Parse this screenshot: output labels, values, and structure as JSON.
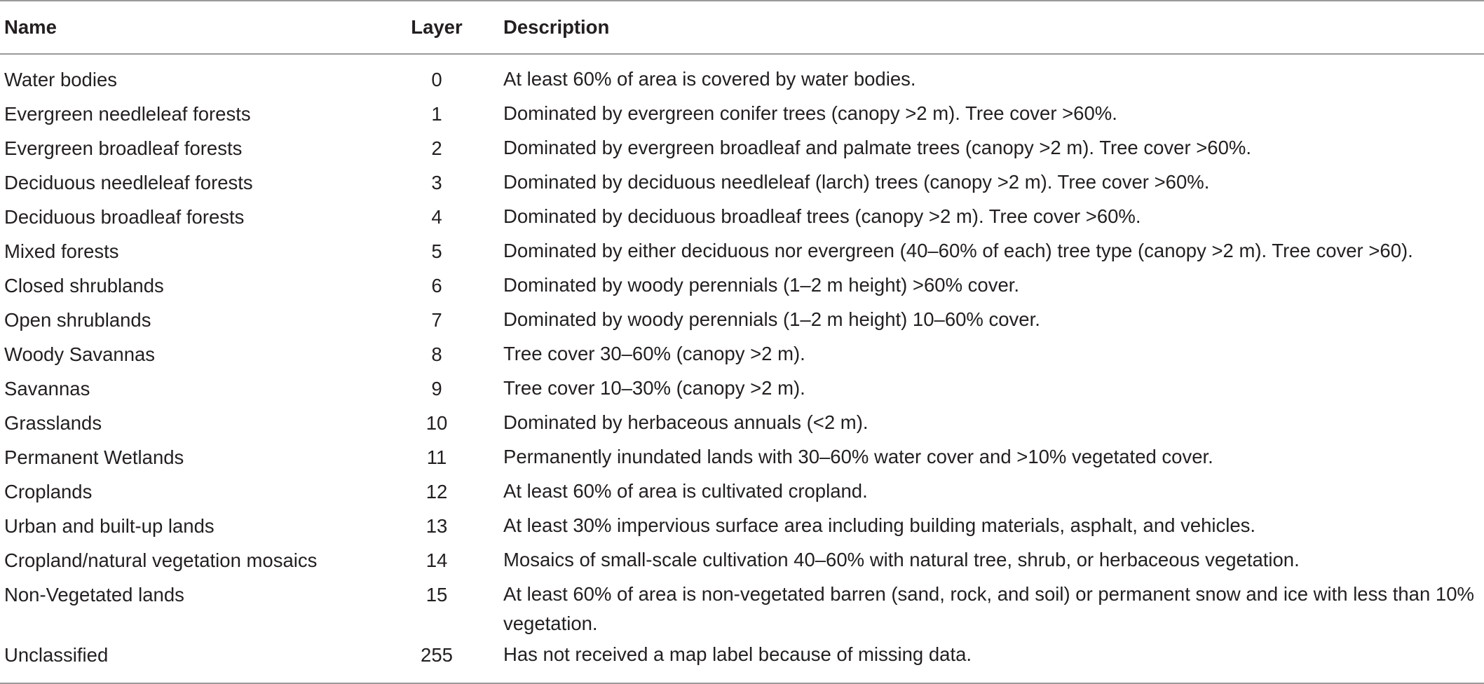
{
  "table": {
    "headers": {
      "name": "Name",
      "layer": "Layer",
      "description": "Description"
    },
    "rows": [
      {
        "name": "Water bodies",
        "layer": "0",
        "description": "At least 60% of area is covered by water bodies."
      },
      {
        "name": "Evergreen needleleaf forests",
        "layer": "1",
        "description": "Dominated by evergreen conifer trees (canopy >2 m). Tree cover >60%."
      },
      {
        "name": "Evergreen broadleaf forests",
        "layer": "2",
        "description": "Dominated by evergreen broadleaf and palmate trees (canopy >2 m). Tree cover >60%."
      },
      {
        "name": "Deciduous needleleaf forests",
        "layer": "3",
        "description": "Dominated by deciduous needleleaf (larch) trees (canopy >2 m). Tree cover >60%."
      },
      {
        "name": "Deciduous broadleaf forests",
        "layer": "4",
        "description": "Dominated by deciduous broadleaf trees (canopy >2 m). Tree cover >60%."
      },
      {
        "name": "Mixed forests",
        "layer": "5",
        "description": "Dominated by either deciduous nor evergreen (40–60% of each) tree type (canopy >2 m). Tree cover >60)."
      },
      {
        "name": "Closed shrublands",
        "layer": "6",
        "description": "Dominated by woody perennials (1–2 m height) >60% cover."
      },
      {
        "name": "Open shrublands",
        "layer": "7",
        "description": "Dominated by woody perennials (1–2 m height) 10–60% cover."
      },
      {
        "name": "Woody Savannas",
        "layer": "8",
        "description": "Tree cover 30–60% (canopy >2 m)."
      },
      {
        "name": "Savannas",
        "layer": "9",
        "description": "Tree cover 10–30% (canopy >2 m)."
      },
      {
        "name": "Grasslands",
        "layer": "10",
        "description": "Dominated by herbaceous annuals (<2 m)."
      },
      {
        "name": "Permanent Wetlands",
        "layer": "11",
        "description": "Permanently inundated lands with 30–60% water cover and >10% vegetated cover."
      },
      {
        "name": "Croplands",
        "layer": "12",
        "description": "At least 60% of area is cultivated cropland."
      },
      {
        "name": "Urban and built-up lands",
        "layer": "13",
        "description": "At least 30% impervious surface area including building materials, asphalt, and vehicles."
      },
      {
        "name": "Cropland/natural vegetation mosaics",
        "layer": "14",
        "description": "Mosaics of small-scale cultivation 40–60% with natural tree, shrub, or herbaceous vegetation."
      },
      {
        "name": "Non-Vegetated lands",
        "layer": "15",
        "description": "At least 60% of area is non-vegetated barren (sand, rock, and soil) or permanent snow and ice with less than 10% vegetation."
      },
      {
        "name": "Unclassified",
        "layer": "255",
        "description": "Has not received a map label because of missing data."
      }
    ]
  },
  "colors": {
    "text": "#231f20",
    "rule": "#9a9a9a",
    "background": "#ffffff"
  }
}
